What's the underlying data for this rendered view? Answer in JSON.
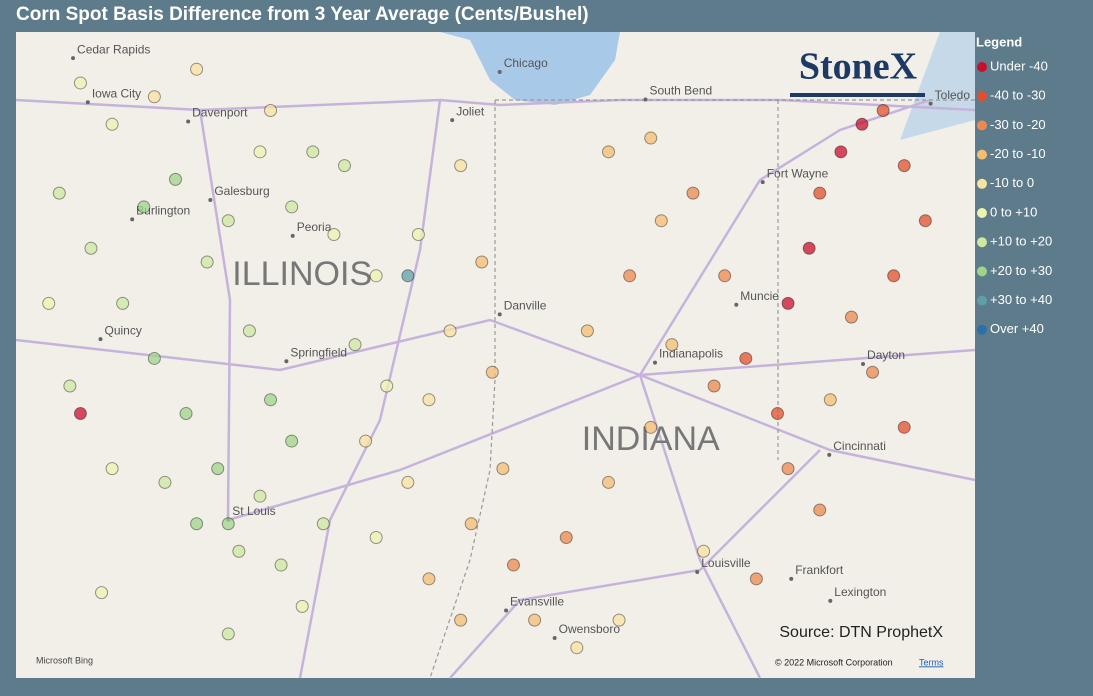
{
  "title": "Corn Spot Basis Difference from 3 Year Average (Cents/Bushel)",
  "logo": "StoneX",
  "source": "Source: DTN ProphetX",
  "attribution": {
    "provider": "Microsoft Bing",
    "copyright": "© 2022 Microsoft Corporation",
    "terms": "Terms"
  },
  "legend": {
    "title": "Legend",
    "items": [
      {
        "label": "Under -40",
        "color": "#c8102e"
      },
      {
        "label": "-40 to -30",
        "color": "#e0502e"
      },
      {
        "label": "-30 to -20",
        "color": "#eb8a4e"
      },
      {
        "label": "-20 to -10",
        "color": "#f5bd72"
      },
      {
        "label": "-10 to 0",
        "color": "#f8e3a0"
      },
      {
        "label": "0 to +10",
        "color": "#eef3b0"
      },
      {
        "label": "+10 to +20",
        "color": "#cfe8a0"
      },
      {
        "label": "+20 to +30",
        "color": "#9fd48a"
      },
      {
        "label": "+30 to +40",
        "color": "#5fa0a5"
      },
      {
        "label": "Over +40",
        "color": "#2e6fa8"
      }
    ]
  },
  "extent": {
    "lon": [
      -92.21,
      -83.13
    ],
    "lat": [
      42.17,
      37.48
    ]
  },
  "states": [
    {
      "name": "ILLINOIS",
      "lon": -89.5,
      "lat": 40.4
    },
    {
      "name": "INDIANA",
      "lon": -86.2,
      "lat": 39.2
    }
  ],
  "cities": [
    {
      "name": "Cedar Rapids",
      "lon": -91.67,
      "lat": 41.98
    },
    {
      "name": "Iowa City",
      "lon": -91.53,
      "lat": 41.66
    },
    {
      "name": "Davenport",
      "lon": -90.58,
      "lat": 41.52
    },
    {
      "name": "Burlington",
      "lon": -91.11,
      "lat": 40.81
    },
    {
      "name": "Galesburg",
      "lon": -90.37,
      "lat": 40.95
    },
    {
      "name": "Peoria",
      "lon": -89.59,
      "lat": 40.69
    },
    {
      "name": "Quincy",
      "lon": -91.41,
      "lat": 39.94
    },
    {
      "name": "Springfield",
      "lon": -89.65,
      "lat": 39.78
    },
    {
      "name": "St Louis",
      "lon": -90.2,
      "lat": 38.63
    },
    {
      "name": "Joliet",
      "lon": -88.08,
      "lat": 41.53
    },
    {
      "name": "Chicago",
      "lon": -87.63,
      "lat": 41.88
    },
    {
      "name": "South Bend",
      "lon": -86.25,
      "lat": 41.68
    },
    {
      "name": "Toledo",
      "lon": -83.55,
      "lat": 41.65
    },
    {
      "name": "Fort Wayne",
      "lon": -85.14,
      "lat": 41.08
    },
    {
      "name": "Muncie",
      "lon": -85.39,
      "lat": 40.19
    },
    {
      "name": "Danville",
      "lon": -87.63,
      "lat": 40.12
    },
    {
      "name": "Indianapolis",
      "lon": -86.16,
      "lat": 39.77
    },
    {
      "name": "Dayton",
      "lon": -84.19,
      "lat": 39.76
    },
    {
      "name": "Cincinnati",
      "lon": -84.51,
      "lat": 39.1
    },
    {
      "name": "Louisville",
      "lon": -85.76,
      "lat": 38.25
    },
    {
      "name": "Frankfort",
      "lon": -84.87,
      "lat": 38.2
    },
    {
      "name": "Lexington",
      "lon": -84.5,
      "lat": 38.04
    },
    {
      "name": "Evansville",
      "lon": -87.57,
      "lat": 37.97
    },
    {
      "name": "Owensboro",
      "lon": -87.11,
      "lat": 37.77
    }
  ],
  "points": [
    [
      -91.8,
      41.0,
      6
    ],
    [
      -91.5,
      40.6,
      6
    ],
    [
      -91.2,
      40.2,
      6
    ],
    [
      -90.9,
      39.8,
      7
    ],
    [
      -90.6,
      39.4,
      7
    ],
    [
      -90.3,
      39.0,
      7
    ],
    [
      -90.5,
      38.6,
      7
    ],
    [
      -90.1,
      38.4,
      6
    ],
    [
      -90.8,
      38.9,
      6
    ],
    [
      -91.0,
      40.9,
      7
    ],
    [
      -90.7,
      41.1,
      7
    ],
    [
      -90.4,
      40.5,
      6
    ],
    [
      -90.0,
      40.0,
      6
    ],
    [
      -89.8,
      39.5,
      7
    ],
    [
      -89.6,
      39.2,
      7
    ],
    [
      -89.9,
      38.8,
      6
    ],
    [
      -89.7,
      38.3,
      6
    ],
    [
      -89.5,
      38.0,
      5
    ],
    [
      -90.2,
      37.8,
      6
    ],
    [
      -91.3,
      41.5,
      5
    ],
    [
      -91.6,
      41.8,
      5
    ],
    [
      -90.9,
      41.7,
      4
    ],
    [
      -90.5,
      41.9,
      4
    ],
    [
      -89.8,
      41.6,
      4
    ],
    [
      -89.4,
      41.3,
      6
    ],
    [
      -89.1,
      41.2,
      6
    ],
    [
      -89.6,
      40.9,
      6
    ],
    [
      -89.2,
      40.7,
      5
    ],
    [
      -88.8,
      40.4,
      5
    ],
    [
      -89.0,
      39.9,
      6
    ],
    [
      -88.7,
      39.6,
      5
    ],
    [
      -88.9,
      39.2,
      4
    ],
    [
      -88.5,
      38.9,
      4
    ],
    [
      -88.8,
      38.5,
      5
    ],
    [
      -88.3,
      38.2,
      3
    ],
    [
      -88.0,
      37.9,
      3
    ],
    [
      -88.3,
      39.5,
      4
    ],
    [
      -88.1,
      40.0,
      4
    ],
    [
      -88.4,
      40.7,
      5
    ],
    [
      -88.0,
      41.2,
      4
    ],
    [
      -87.8,
      40.5,
      3
    ],
    [
      -87.7,
      39.7,
      3
    ],
    [
      -87.6,
      39.0,
      3
    ],
    [
      -87.9,
      38.6,
      3
    ],
    [
      -87.5,
      38.3,
      2
    ],
    [
      -87.3,
      37.9,
      3
    ],
    [
      -86.9,
      37.7,
      4
    ],
    [
      -87.0,
      38.5,
      2
    ],
    [
      -86.6,
      38.9,
      3
    ],
    [
      -86.2,
      39.3,
      3
    ],
    [
      -86.8,
      40.0,
      3
    ],
    [
      -86.4,
      40.4,
      2
    ],
    [
      -86.1,
      40.8,
      3
    ],
    [
      -86.6,
      41.3,
      3
    ],
    [
      -86.2,
      41.4,
      3
    ],
    [
      -85.8,
      41.0,
      2
    ],
    [
      -85.5,
      40.4,
      2
    ],
    [
      -85.3,
      39.8,
      1
    ],
    [
      -85.0,
      39.4,
      1
    ],
    [
      -84.9,
      39.0,
      2
    ],
    [
      -85.6,
      39.6,
      2
    ],
    [
      -86.0,
      39.9,
      3
    ],
    [
      -84.9,
      40.2,
      0
    ],
    [
      -84.7,
      40.6,
      0
    ],
    [
      -84.6,
      41.0,
      1
    ],
    [
      -84.4,
      41.3,
      0
    ],
    [
      -84.2,
      41.5,
      0
    ],
    [
      -84.0,
      41.6,
      1
    ],
    [
      -83.8,
      41.2,
      1
    ],
    [
      -83.6,
      40.8,
      1
    ],
    [
      -83.9,
      40.4,
      1
    ],
    [
      -84.3,
      40.1,
      2
    ],
    [
      -84.1,
      39.7,
      2
    ],
    [
      -83.8,
      39.3,
      1
    ],
    [
      -84.5,
      39.5,
      3
    ],
    [
      -84.6,
      38.7,
      2
    ],
    [
      -85.7,
      38.4,
      4
    ],
    [
      -85.2,
      38.2,
      2
    ],
    [
      -86.5,
      37.9,
      4
    ],
    [
      -89.9,
      41.3,
      5
    ],
    [
      -90.2,
      40.8,
      6
    ],
    [
      -89.3,
      38.6,
      6
    ],
    [
      -91.4,
      38.1,
      5
    ],
    [
      -91.7,
      39.6,
      6
    ],
    [
      -91.3,
      39.0,
      5
    ],
    [
      -91.9,
      40.2,
      5
    ],
    [
      -91.6,
      39.4,
      0
    ],
    [
      -88.5,
      40.4,
      8
    ],
    [
      -90.2,
      38.6,
      7
    ]
  ]
}
